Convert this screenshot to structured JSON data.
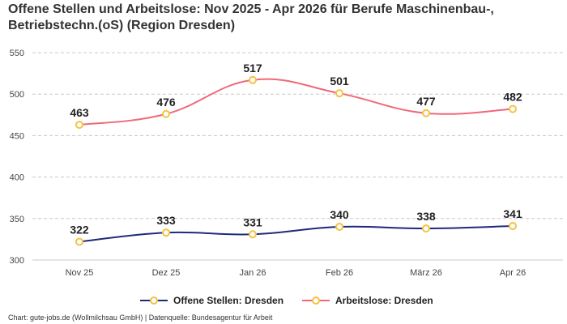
{
  "header": {
    "title_line1": "Offene Stellen und Arbeitslose: Nov 2025 - Apr 2026 für Berufe Maschinenbau-,",
    "title_line2": "Betriebstechn.(oS) (Region Dresden)"
  },
  "footer": {
    "text": "Chart: gute-jobs.de (Wollmilchsau GmbH) | Datenquelle: Bundesagentur für Arbeit"
  },
  "chart_data": {
    "type": "line",
    "title": "Offene Stellen und Arbeitslose: Nov 2025 - Apr 2026 für Berufe Maschinenbau-, Betriebstechn.(oS) (Region Dresden)",
    "categories": [
      "Nov 25",
      "Dez 25",
      "Jan 26",
      "Feb 26",
      "März 26",
      "Apr 26"
    ],
    "ylim": [
      300,
      550
    ],
    "yticks": [
      300,
      350,
      400,
      450,
      500,
      550
    ],
    "grid": "horizontal dashed",
    "legend_position": "bottom-center",
    "series": [
      {
        "name": "Offene Stellen: Dresden",
        "color": "#1f2a7a",
        "values": [
          322,
          333,
          331,
          340,
          338,
          341
        ]
      },
      {
        "name": "Arbeitslose: Dresden",
        "color": "#f0687a",
        "values": [
          463,
          476,
          517,
          501,
          477,
          482
        ]
      }
    ],
    "marker": {
      "stroke": "#f5c242",
      "fill": "#ffffff"
    }
  }
}
